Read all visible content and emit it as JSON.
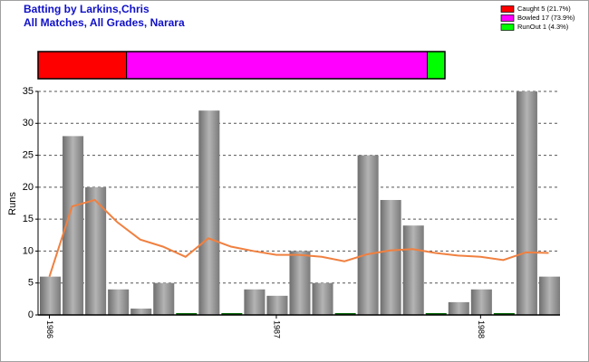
{
  "chart_data": {
    "type": "bar",
    "title": "Batting by Larkins,Chris",
    "subtitle": "All Matches, All Grades, Narara",
    "y_label": "Runs",
    "dismissals": [
      {
        "label": "Caught 5 (21.7%)",
        "value": 5,
        "color": "#ff0000"
      },
      {
        "label": "Bowled 17 (73.9%)",
        "value": 17,
        "color": "#ff00ff"
      },
      {
        "label": "RunOut 1 (4.3%)",
        "value": 1,
        "color": "#00ff00"
      }
    ],
    "categories": [
      "1986",
      null,
      null,
      null,
      null,
      null,
      null,
      null,
      null,
      null,
      "1987",
      null,
      null,
      null,
      null,
      null,
      null,
      null,
      null,
      "1988",
      null,
      null,
      null
    ],
    "values": [
      6,
      28,
      20,
      4,
      1,
      5,
      0,
      32,
      0,
      4,
      3,
      10,
      5,
      0,
      25,
      18,
      14,
      0,
      2,
      4,
      0,
      35,
      6
    ],
    "average": [
      6,
      17,
      18,
      14.5,
      11.8,
      10.7,
      9.1,
      12,
      10.7,
      10,
      9.4,
      9.4,
      9.1,
      8.4,
      9.5,
      10.1,
      10.3,
      9.7,
      9.3,
      9.1,
      8.6,
      9.8,
      9.7
    ],
    "bar_color": "#8c8c8c",
    "line_color": "#f08040",
    "ylim": [
      0,
      35
    ],
    "yticks": [
      0,
      5,
      10,
      15,
      20,
      25,
      30,
      35
    ],
    "grid": true
  }
}
